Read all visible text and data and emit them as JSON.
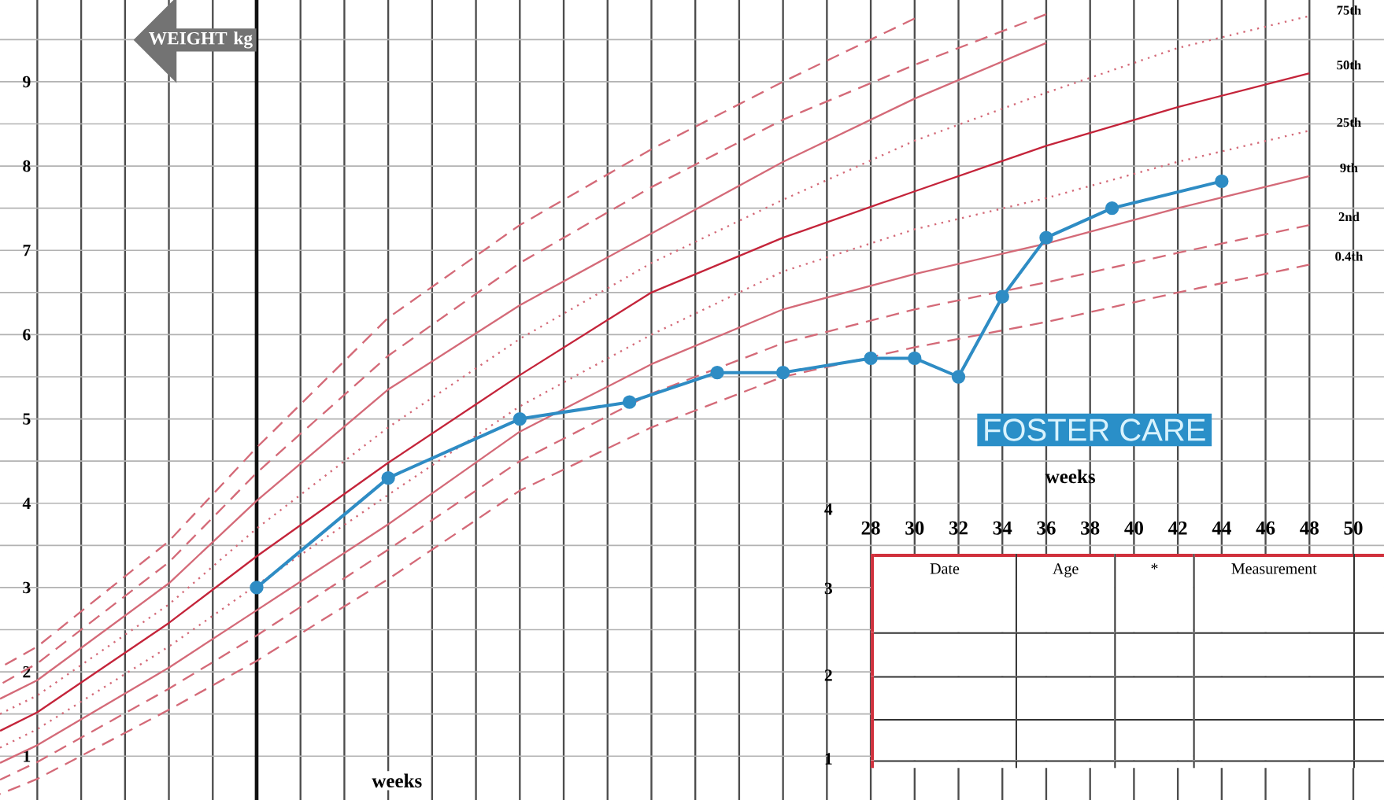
{
  "chart_data": {
    "type": "line",
    "xlabel": "weeks",
    "ylabel": "WEIGHT kg",
    "x": [
      -11.7,
      -10,
      -4,
      0,
      6,
      12,
      18,
      24,
      30,
      36,
      42,
      48
    ],
    "xlim": [
      -11.7,
      51.4
    ],
    "ylim": [
      0.48,
      9.97
    ],
    "xticks": [
      {
        "value": -10,
        "label": null
      },
      {
        "value": -8,
        "label": null
      },
      {
        "value": -6,
        "label": null
      },
      {
        "value": -4,
        "label": null
      },
      {
        "value": -2,
        "label": null
      },
      {
        "value": 0,
        "label": null
      },
      {
        "value": 2,
        "label": null
      },
      {
        "value": 4,
        "label": null
      },
      {
        "value": 6,
        "label": null
      },
      {
        "value": 8,
        "label": null
      },
      {
        "value": 10,
        "label": null
      },
      {
        "value": 12,
        "label": null
      },
      {
        "value": 14,
        "label": null
      },
      {
        "value": 16,
        "label": null
      },
      {
        "value": 18,
        "label": null
      },
      {
        "value": 20,
        "label": null
      },
      {
        "value": 22,
        "label": null
      },
      {
        "value": 24,
        "label": null
      },
      {
        "value": 26,
        "label": null
      },
      28,
      30,
      32,
      34,
      36,
      38,
      40,
      42,
      44,
      46,
      48,
      50
    ],
    "yticks": [
      1,
      {
        "value": 1.5,
        "label": null
      },
      2,
      {
        "value": 2.5,
        "label": null
      },
      3,
      {
        "value": 3.5,
        "label": null
      },
      4,
      {
        "value": 4.5,
        "label": null
      },
      5,
      {
        "value": 5.5,
        "label": null
      },
      6,
      {
        "value": 6.5,
        "label": null
      },
      7,
      {
        "value": 7.5,
        "label": null
      },
      8,
      {
        "value": 8.5,
        "label": null
      },
      9,
      {
        "value": 9.5,
        "label": null
      }
    ],
    "grid": true,
    "series": [
      {
        "color": "#d46a78",
        "line_style": "dashed",
        "marker": "none",
        "values": [
          2.05,
          2.3,
          3.55,
          4.66,
          6.2,
          7.3,
          8.2,
          9.0,
          9.75,
          null,
          null,
          null
        ]
      },
      {
        "color": "#d46a78",
        "line_style": "dashed",
        "marker": "none",
        "values": [
          1.85,
          2.1,
          3.3,
          4.36,
          5.75,
          6.85,
          7.75,
          8.55,
          9.2,
          9.8,
          null,
          null
        ]
      },
      {
        "color": "#d46a78",
        "line_style": "solid",
        "marker": "none",
        "values": [
          1.68,
          1.9,
          3.05,
          4.03,
          5.35,
          6.35,
          7.2,
          8.05,
          8.8,
          9.46,
          null,
          null
        ]
      },
      {
        "name": "75th",
        "color": "#d46a78",
        "line_style": "dotted",
        "marker": "none",
        "values": [
          1.5,
          1.72,
          2.8,
          3.7,
          4.9,
          5.95,
          6.85,
          7.6,
          8.3,
          8.87,
          9.4,
          9.78
        ]
      },
      {
        "name": "50th",
        "color": "#c4243a",
        "line_style": "solid",
        "marker": "none",
        "values": [
          1.3,
          1.52,
          2.58,
          3.37,
          4.48,
          5.52,
          6.5,
          7.15,
          7.7,
          8.24,
          8.7,
          9.1
        ]
      },
      {
        "name": "25th",
        "color": "#d46a78",
        "line_style": "dotted",
        "marker": "none",
        "values": [
          1.1,
          1.32,
          2.3,
          3.03,
          4.1,
          5.15,
          6.0,
          6.75,
          7.25,
          7.62,
          8.05,
          8.42
        ]
      },
      {
        "name": "9th",
        "color": "#d46a78",
        "line_style": "solid",
        "marker": "none",
        "values": [
          0.92,
          1.13,
          2.05,
          2.73,
          3.75,
          4.85,
          5.65,
          6.3,
          6.72,
          7.08,
          7.5,
          7.88
        ]
      },
      {
        "name": "2nd",
        "color": "#d46a78",
        "line_style": "dashed",
        "marker": "none",
        "values": [
          0.72,
          0.93,
          1.8,
          2.43,
          3.45,
          4.5,
          5.3,
          5.9,
          6.3,
          6.62,
          6.97,
          7.3
        ]
      },
      {
        "name": "0.4th",
        "color": "#d46a78",
        "line_style": "dashed",
        "marker": "none",
        "values": [
          0.55,
          0.73,
          1.55,
          2.13,
          3.1,
          4.15,
          4.9,
          5.5,
          5.85,
          6.15,
          6.5,
          6.83
        ]
      },
      {
        "color": "#2e8cc4",
        "line_style": "solid",
        "marker": "circle",
        "x": [
          0,
          6,
          12,
          17,
          21,
          24,
          28,
          30,
          32,
          34,
          36,
          39,
          44
        ],
        "values": [
          3.0,
          4.3,
          5.0,
          5.2,
          5.55,
          5.55,
          5.72,
          5.72,
          5.5,
          6.45,
          7.15,
          7.5,
          7.82
        ]
      }
    ],
    "ref_lines": [
      {
        "axis": "x",
        "value": 0,
        "color": "#111111"
      }
    ],
    "annotations": [
      "weeks",
      "FOSTER CARE",
      "Date",
      "Age",
      "*",
      "Measurement",
      "4",
      "3",
      "2",
      "1"
    ]
  }
}
